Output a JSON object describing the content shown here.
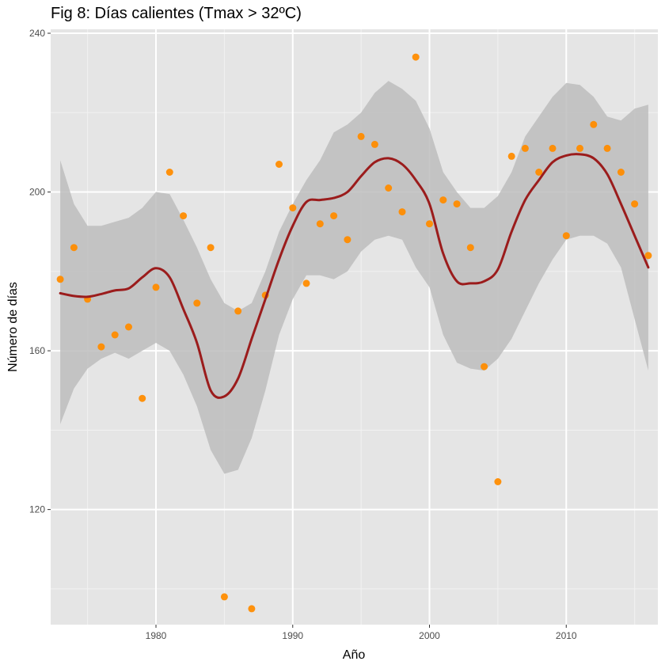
{
  "chart_data": {
    "type": "scatter",
    "title": "Fig 8: Días calientes (Tmax > 32ºC)",
    "xlabel": "Año",
    "ylabel": "Número de días",
    "xlim": [
      1972.3,
      2016.7
    ],
    "ylim": [
      91,
      241
    ],
    "x_ticks": [
      1980,
      1990,
      2000,
      2010
    ],
    "y_ticks": [
      120,
      160,
      200,
      240
    ],
    "x_tick_labels": [
      "1980",
      "1990",
      "2000",
      "2010"
    ],
    "y_tick_labels": [
      "120",
      "160",
      "200",
      "240"
    ],
    "grid": true,
    "colors": {
      "points": "#ff8c00",
      "smooth_line": "#9b1c1c",
      "ribbon": "#bdbdbd",
      "panel": "#e5e5e5",
      "grid": "#ffffff"
    },
    "series": [
      {
        "kind": "points",
        "x": [
          1973,
          1974,
          1975,
          1976,
          1977,
          1978,
          1979,
          1980,
          1981,
          1982,
          1983,
          1984,
          1985,
          1986,
          1987,
          1988,
          1989,
          1990,
          1991,
          1992,
          1993,
          1994,
          1995,
          1996,
          1997,
          1998,
          1999,
          2000,
          2001,
          2002,
          2003,
          2004,
          2005,
          2006,
          2007,
          2008,
          2009,
          2010,
          2011,
          2012,
          2013,
          2014,
          2015,
          2016
        ],
        "y": [
          178,
          186,
          173,
          161,
          164,
          166,
          148,
          176,
          205,
          194,
          172,
          186,
          98,
          170,
          95,
          174,
          207,
          196,
          177,
          192,
          194,
          188,
          214,
          212,
          201,
          195,
          234,
          192,
          198,
          197,
          186,
          156,
          127,
          209,
          211,
          205,
          211,
          189,
          211,
          217,
          211,
          205,
          197,
          184
        ]
      },
      {
        "kind": "smooth",
        "x": [
          1973,
          1974,
          1975,
          1976,
          1977,
          1978,
          1979,
          1980,
          1981,
          1982,
          1983,
          1984,
          1985,
          1986,
          1987,
          1988,
          1989,
          1990,
          1991,
          1992,
          1993,
          1994,
          1995,
          1996,
          1997,
          1998,
          1999,
          2000,
          2001,
          2002,
          2003,
          2004,
          2005,
          2006,
          2007,
          2008,
          2009,
          2010,
          2011,
          2012,
          2013,
          2014,
          2015,
          2016
        ],
        "y": [
          174.5,
          173.8,
          173.6,
          174.3,
          175.2,
          175.7,
          178.5,
          180.8,
          178.5,
          170.5,
          162,
          150,
          148.5,
          153,
          163,
          173,
          183,
          191.5,
          197.5,
          198,
          198.5,
          200,
          204,
          207.5,
          208.5,
          207,
          203,
          197,
          184.5,
          177.5,
          177,
          177.5,
          180.5,
          190,
          198,
          203,
          207.5,
          209.2,
          209.5,
          208.5,
          204.5,
          197,
          189,
          181
        ],
        "upper": [
          208,
          197,
          191.5,
          191.5,
          192.5,
          193.5,
          196,
          200,
          199.5,
          193,
          186,
          178,
          172,
          170,
          172,
          180,
          190,
          197,
          203,
          208,
          215,
          217,
          220,
          225,
          228,
          226,
          223,
          216,
          205,
          200,
          196,
          196,
          199,
          205,
          214,
          219,
          224,
          227.5,
          227,
          224,
          219,
          218,
          221,
          222
        ],
        "lower": [
          141.5,
          150.5,
          155.5,
          158,
          159.5,
          158,
          160,
          162,
          160,
          154,
          146,
          135,
          129,
          130,
          138,
          150,
          164,
          173,
          179,
          179,
          178,
          180,
          185,
          188,
          189,
          188,
          181,
          176,
          164,
          157,
          155.5,
          155,
          158,
          163,
          170,
          177,
          183,
          188,
          189,
          189,
          187,
          181,
          168,
          155
        ]
      }
    ]
  }
}
